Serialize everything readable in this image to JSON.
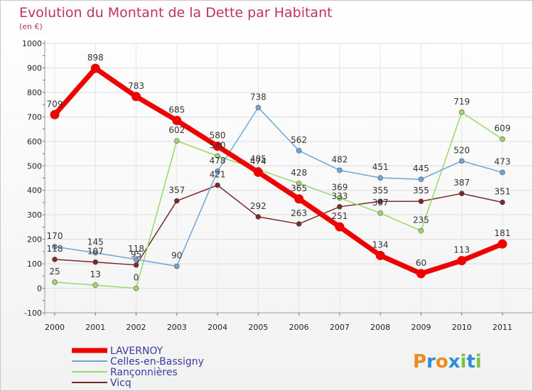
{
  "title": "Evolution du Montant de la Dette par Habitant",
  "subtitle": "(en €)",
  "logo_text": "Proxiti",
  "chart_data": {
    "type": "line",
    "title": "Evolution du Montant de la Dette par Habitant",
    "subtitle": "(en €)",
    "xlabel": "",
    "ylabel": "",
    "x": [
      "2000",
      "2001",
      "2002",
      "2003",
      "2004",
      "2005",
      "2006",
      "2007",
      "2008",
      "2009",
      "2010",
      "2011"
    ],
    "y_ticks": [
      "-100",
      "0",
      "100",
      "200",
      "300",
      "400",
      "500",
      "600",
      "700",
      "800",
      "900",
      "1000"
    ],
    "ylim": [
      -100,
      1000
    ],
    "grid": true,
    "legend_position": "bottom-left",
    "series": [
      {
        "name": "LAVERNOY",
        "color": "#ee0000",
        "values": [
          709,
          898,
          783,
          685,
          580,
          474,
          365,
          251,
          134,
          60,
          113,
          181
        ],
        "labels": [
          "709",
          "898",
          "783",
          "685",
          "580",
          "474",
          "365",
          "251",
          "134",
          "60",
          "113",
          "181"
        ]
      },
      {
        "name": "Celles-en-Bassigny",
        "color": "#6ea6d8",
        "values": [
          170,
          145,
          118,
          90,
          478,
          738,
          562,
          482,
          451,
          445,
          520,
          473
        ],
        "labels": [
          "170",
          "145",
          "118",
          "90",
          "478",
          "738",
          "562",
          "482",
          "451",
          "445",
          "520",
          "473"
        ]
      },
      {
        "name": "Rançonnières",
        "color": "#9ad86a",
        "values": [
          25,
          13,
          0,
          602,
          540,
          485,
          428,
          369,
          307,
          235,
          719,
          609
        ],
        "labels": [
          "25",
          "13",
          "0",
          "602",
          "540",
          "485",
          "428",
          "369",
          "307",
          "235",
          "719",
          "609"
        ]
      },
      {
        "name": "Vicq",
        "color": "#7a2a2a",
        "values": [
          118,
          107,
          95,
          357,
          421,
          292,
          263,
          333,
          355,
          355,
          387,
          351
        ],
        "labels": [
          "118",
          "107",
          "95",
          "357",
          "421",
          "292",
          "263",
          "333",
          "355",
          "355",
          "387",
          "351"
        ]
      }
    ]
  }
}
